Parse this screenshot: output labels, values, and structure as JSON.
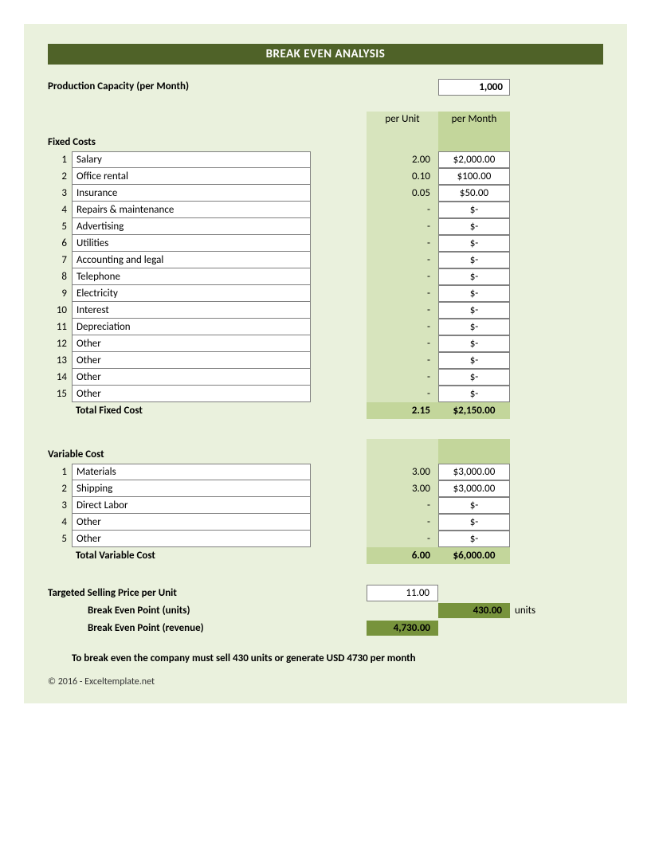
{
  "title": "BREAK EVEN ANALYSIS",
  "production_capacity": {
    "label": "Production Capacity (per Month)",
    "value": "1,000"
  },
  "column_headers": {
    "per_unit": "per Unit",
    "per_month": "per Month"
  },
  "fixed_costs": {
    "section_label": "Fixed Costs",
    "items": [
      {
        "n": "1",
        "desc": "Salary",
        "per_unit": "2.00",
        "per_month": "$2,000.00"
      },
      {
        "n": "2",
        "desc": "Office rental",
        "per_unit": "0.10",
        "per_month": "$100.00"
      },
      {
        "n": "3",
        "desc": "Insurance",
        "per_unit": "0.05",
        "per_month": "$50.00"
      },
      {
        "n": "4",
        "desc": "Repairs & maintenance",
        "per_unit": "-",
        "per_month": "$-"
      },
      {
        "n": "5",
        "desc": "Advertising",
        "per_unit": "-",
        "per_month": "$-"
      },
      {
        "n": "6",
        "desc": "Utilities",
        "per_unit": "-",
        "per_month": "$-"
      },
      {
        "n": "7",
        "desc": "Accounting and legal",
        "per_unit": "-",
        "per_month": "$-"
      },
      {
        "n": "8",
        "desc": "Telephone",
        "per_unit": "-",
        "per_month": "$-"
      },
      {
        "n": "9",
        "desc": "Electricity",
        "per_unit": "-",
        "per_month": "$-"
      },
      {
        "n": "10",
        "desc": "Interest",
        "per_unit": "-",
        "per_month": "$-"
      },
      {
        "n": "11",
        "desc": "Depreciation",
        "per_unit": "-",
        "per_month": "$-"
      },
      {
        "n": "12",
        "desc": "Other",
        "per_unit": "-",
        "per_month": "$-"
      },
      {
        "n": "13",
        "desc": "Other",
        "per_unit": "-",
        "per_month": "$-"
      },
      {
        "n": "14",
        "desc": "Other",
        "per_unit": "-",
        "per_month": "$-"
      },
      {
        "n": "15",
        "desc": "Other",
        "per_unit": "-",
        "per_month": "$-"
      }
    ],
    "total_label": "Total Fixed Cost",
    "total_per_unit": "2.15",
    "total_per_month": "$2,150.00"
  },
  "variable_costs": {
    "section_label": "Variable Cost",
    "items": [
      {
        "n": "1",
        "desc": "Materials",
        "per_unit": "3.00",
        "per_month": "$3,000.00"
      },
      {
        "n": "2",
        "desc": "Shipping",
        "per_unit": "3.00",
        "per_month": "$3,000.00"
      },
      {
        "n": "3",
        "desc": "Direct Labor",
        "per_unit": "-",
        "per_month": "$-"
      },
      {
        "n": "4",
        "desc": "Other",
        "per_unit": "-",
        "per_month": "$-"
      },
      {
        "n": "5",
        "desc": "Other",
        "per_unit": "-",
        "per_month": "$-"
      }
    ],
    "total_label": "Total Variable Cost",
    "total_per_unit": "6.00",
    "total_per_month": "$6,000.00"
  },
  "results": {
    "selling_price_label": "Targeted Selling Price per Unit",
    "selling_price": "11.00",
    "bep_units_label": "Break Even Point (units)",
    "bep_units": "430.00",
    "units_suffix": "units",
    "bep_revenue_label": "Break Even Point (revenue)",
    "bep_revenue": "4,730.00"
  },
  "summary": "To break even the company must sell 430 units or generate USD 4730 per month",
  "copyright": "© 2016 - Exceltemplate.net",
  "colors": {
    "sheet_bg": "#eaf1dd",
    "title_bar": "#4f6228",
    "unit_col": "#d7e4bd",
    "total_bg": "#c3d69b",
    "result_bg": "#77933c",
    "cell_bg": "#ffffff",
    "border": "#808080"
  }
}
